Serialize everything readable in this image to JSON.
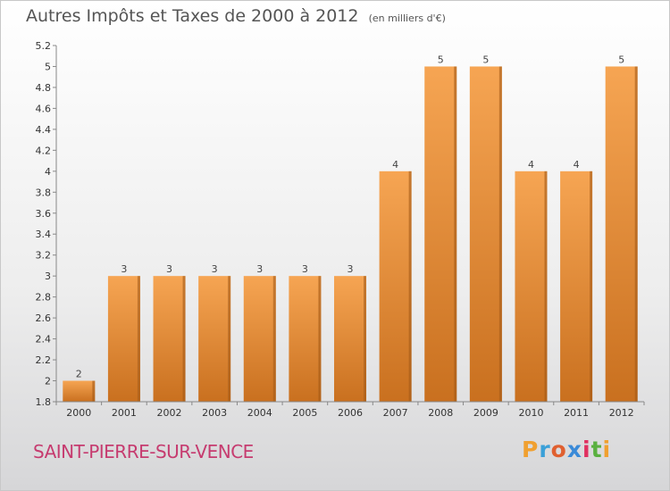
{
  "chart_data": {
    "type": "bar",
    "title": "Autres Impôts et Taxes de 2000 à 2012",
    "subtitle": "(en milliers d'€)",
    "categories": [
      "2000",
      "2001",
      "2002",
      "2003",
      "2004",
      "2005",
      "2006",
      "2007",
      "2008",
      "2009",
      "2010",
      "2011",
      "2012"
    ],
    "values": [
      2,
      3,
      3,
      3,
      3,
      3,
      3,
      4,
      5,
      5,
      4,
      4,
      5
    ],
    "data_labels": [
      "2",
      "3",
      "3",
      "3",
      "3",
      "3",
      "3",
      "4",
      "5",
      "5",
      "4",
      "4",
      "5"
    ],
    "y_ticks": [
      "1.8",
      "2",
      "2.2",
      "2.4",
      "2.6",
      "2.8",
      "3",
      "3.2",
      "3.4",
      "3.6",
      "3.8",
      "4",
      "4.2",
      "4.4",
      "4.6",
      "4.8",
      "5",
      "5.2"
    ],
    "ylim": [
      1.8,
      5.2
    ],
    "xlabel": "",
    "ylabel": "",
    "grid": false,
    "bar_color_top": "#f6a553",
    "bar_color_bottom": "#c9701f",
    "bar_color_right": "#a45a18"
  },
  "footer": {
    "commune": "SAINT-PIERRE-SUR-VENCE",
    "logo_parts": [
      "P",
      "r",
      "o",
      "x",
      "i",
      "t",
      "i"
    ]
  },
  "colors": {
    "commune_text": "#c63b6f"
  }
}
